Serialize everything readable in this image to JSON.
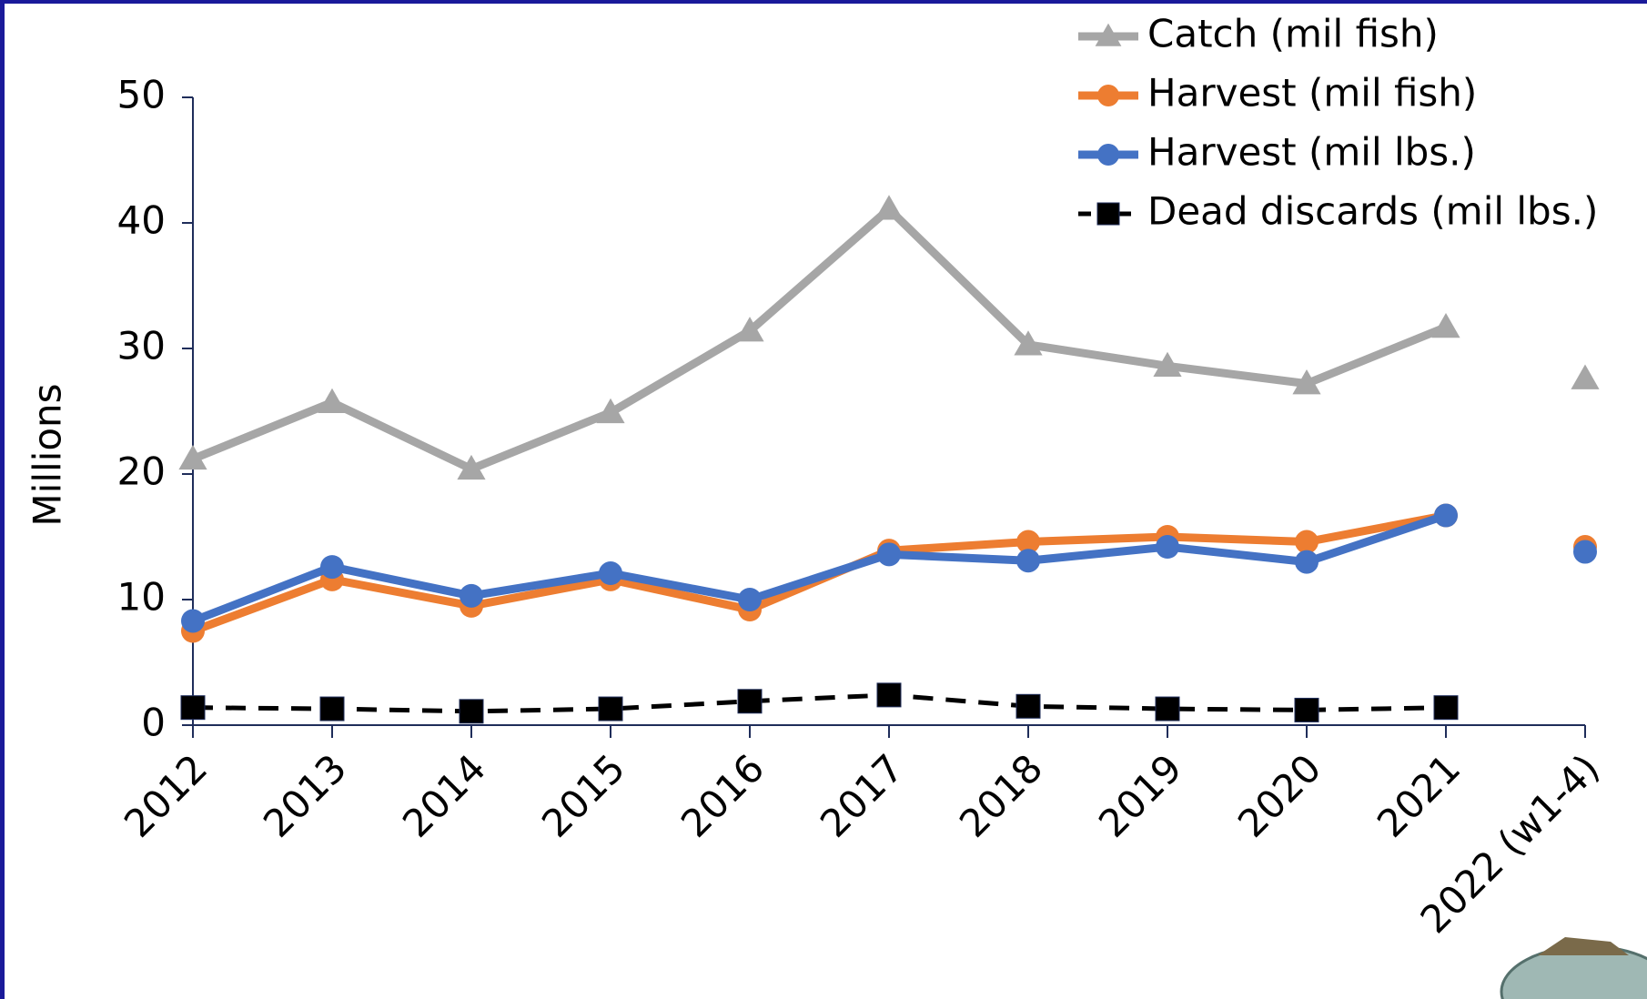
{
  "chart_data": {
    "type": "line",
    "y_label": "Millions",
    "categories": [
      "2012",
      "2013",
      "2014",
      "2015",
      "2016",
      "2017",
      "2018",
      "2019",
      "2020",
      "2021",
      "2022 (w1-4)"
    ],
    "unconnected_last": true,
    "ylim": [
      0,
      50
    ],
    "yticks": [
      0,
      10,
      20,
      30,
      40,
      50
    ],
    "legend": "top-right",
    "series": [
      {
        "name": "Catch (mil fish)",
        "color": "#a6a6a6",
        "marker": "triangle",
        "dashed": false,
        "values": [
          21.2,
          25.7,
          20.4,
          24.9,
          31.4,
          41.1,
          30.3,
          28.6,
          27.2,
          31.7,
          27.6
        ]
      },
      {
        "name": "Harvest (mil fish)",
        "color": "#ed7d31",
        "marker": "circle",
        "dashed": false,
        "values": [
          7.5,
          11.6,
          9.5,
          11.6,
          9.2,
          13.9,
          14.6,
          15.0,
          14.6,
          16.7,
          14.2
        ]
      },
      {
        "name": "Harvest (mil lbs.)",
        "color": "#4472c4",
        "marker": "circle",
        "dashed": false,
        "values": [
          8.3,
          12.6,
          10.3,
          12.1,
          10.0,
          13.6,
          13.1,
          14.2,
          13.0,
          16.7,
          13.8
        ]
      },
      {
        "name": "Dead discards (mil lbs.)",
        "color": "#000000",
        "marker": "square",
        "dashed": true,
        "values": [
          1.4,
          1.3,
          1.1,
          1.3,
          1.9,
          2.4,
          1.5,
          1.3,
          1.2,
          1.4,
          null
        ]
      }
    ]
  }
}
